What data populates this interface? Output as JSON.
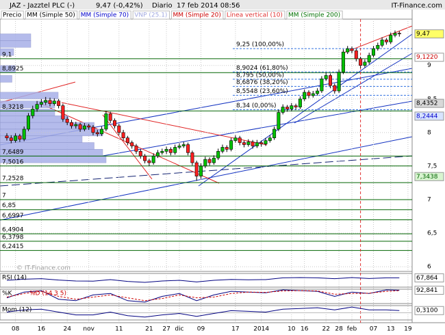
{
  "header": {
    "title": "JAZ - Jazztel PLC (-)",
    "quote": "9,47 (-0,42%)",
    "period": "Diario",
    "date": "17 feb 2014 08:56",
    "brand": "IT-Finance.com",
    "watermark": "© IT-Finance.com"
  },
  "chart_data": [
    {
      "type": "candlestick",
      "legend": [
        {
          "name": "Precio",
          "color": "#000000"
        },
        {
          "name": "MM (Simple 50)",
          "color": "#000000"
        },
        {
          "name": "MM (Simple 70)",
          "color": "#0000cc"
        },
        {
          "name": "VNP (25.1)",
          "color": "#a0a8e0"
        },
        {
          "name": "MM (Simple 20)",
          "color": "#cc0000"
        },
        {
          "name": "Línea vertical (10)",
          "color": "#e03030"
        },
        {
          "name": "MM (Simple 200)",
          "color": "#007000"
        }
      ],
      "categories": [
        null,
        null,
        "08",
        null,
        null,
        null,
        null,
        null,
        "16",
        null,
        null,
        null,
        null,
        null,
        "24",
        null,
        null,
        null,
        null,
        "nov",
        null,
        null,
        null,
        null,
        null,
        null,
        "11",
        null,
        null,
        null,
        null,
        null,
        null,
        "21",
        null,
        null,
        null,
        "27",
        null,
        null,
        "dic",
        null,
        null,
        null,
        null,
        "09",
        null,
        null,
        null,
        null,
        null,
        null,
        null,
        "17",
        null,
        null,
        null,
        null,
        null,
        "2014",
        null,
        null,
        null,
        null,
        null,
        null,
        "10",
        null,
        null,
        "16",
        null,
        null,
        null,
        null,
        "22",
        null,
        null,
        "28",
        null,
        null,
        "feb",
        null,
        null,
        null,
        null,
        "07",
        null,
        null,
        null,
        "13",
        null,
        null,
        null,
        "19"
      ],
      "ohlc": [
        [
          7.95,
          7.99,
          7.88,
          7.92
        ],
        [
          7.92,
          7.96,
          7.84,
          7.88
        ],
        [
          7.88,
          7.99,
          7.85,
          7.95
        ],
        [
          7.95,
          7.98,
          7.86,
          7.9
        ],
        [
          7.9,
          8.09,
          7.87,
          8.05
        ],
        [
          8.05,
          8.29,
          8.02,
          8.25
        ],
        [
          8.25,
          8.4,
          8.21,
          8.35
        ],
        [
          8.35,
          8.47,
          8.31,
          8.42
        ],
        [
          8.42,
          8.5,
          8.38,
          8.45
        ],
        [
          8.45,
          8.53,
          8.41,
          8.48
        ],
        [
          8.48,
          8.52,
          8.39,
          8.43
        ],
        [
          8.43,
          8.51,
          8.4,
          8.47
        ],
        [
          8.47,
          8.5,
          8.36,
          8.4
        ],
        [
          8.4,
          8.43,
          8.16,
          8.2
        ],
        [
          8.2,
          8.24,
          8.11,
          8.15
        ],
        [
          8.15,
          8.19,
          8.06,
          8.1
        ],
        [
          8.1,
          8.16,
          8.06,
          8.12
        ],
        [
          8.12,
          8.15,
          8.01,
          8.05
        ],
        [
          8.05,
          8.14,
          8.02,
          8.1
        ],
        [
          8.1,
          8.13,
          8.04,
          8.08
        ],
        [
          8.08,
          8.11,
          7.96,
          8.0
        ],
        [
          8.0,
          8.04,
          7.94,
          7.98
        ],
        [
          7.98,
          8.09,
          7.95,
          8.05
        ],
        [
          8.05,
          8.32,
          8.02,
          8.28
        ],
        [
          8.28,
          8.31,
          8.14,
          8.18
        ],
        [
          8.18,
          8.21,
          8.06,
          8.1
        ],
        [
          8.1,
          8.13,
          7.96,
          8.0
        ],
        [
          8.0,
          8.04,
          7.88,
          7.92
        ],
        [
          7.92,
          7.95,
          7.81,
          7.85
        ],
        [
          7.85,
          7.88,
          7.76,
          7.8
        ],
        [
          7.8,
          7.83,
          7.68,
          7.72
        ],
        [
          7.72,
          7.75,
          7.61,
          7.65
        ],
        [
          7.65,
          7.68,
          7.54,
          7.58
        ],
        [
          7.58,
          7.61,
          7.5,
          7.55
        ],
        [
          7.55,
          7.69,
          7.52,
          7.65
        ],
        [
          7.65,
          7.74,
          7.62,
          7.7
        ],
        [
          7.7,
          7.76,
          7.67,
          7.72
        ],
        [
          7.72,
          7.79,
          7.68,
          7.75
        ],
        [
          7.75,
          7.78,
          7.66,
          7.7
        ],
        [
          7.7,
          7.82,
          7.67,
          7.78
        ],
        [
          7.78,
          7.84,
          7.75,
          7.8
        ],
        [
          7.8,
          7.86,
          7.77,
          7.82
        ],
        [
          7.82,
          7.85,
          7.66,
          7.7
        ],
        [
          7.7,
          7.73,
          7.51,
          7.55
        ],
        [
          7.55,
          7.58,
          7.28,
          7.35
        ],
        [
          7.35,
          7.54,
          7.31,
          7.5
        ],
        [
          7.5,
          7.64,
          7.47,
          7.6
        ],
        [
          7.6,
          7.63,
          7.51,
          7.55
        ],
        [
          7.55,
          7.66,
          7.52,
          7.62
        ],
        [
          7.62,
          7.76,
          7.59,
          7.72
        ],
        [
          7.72,
          7.82,
          7.69,
          7.78
        ],
        [
          7.78,
          7.81,
          7.71,
          7.75
        ],
        [
          7.75,
          7.92,
          7.72,
          7.88
        ],
        [
          7.88,
          7.96,
          7.85,
          7.92
        ],
        [
          7.92,
          7.95,
          7.81,
          7.85
        ],
        [
          7.85,
          7.88,
          7.78,
          7.82
        ],
        [
          7.82,
          7.9,
          7.79,
          7.86
        ],
        [
          7.86,
          7.89,
          7.76,
          7.8
        ],
        [
          7.8,
          7.89,
          7.77,
          7.85
        ],
        [
          7.85,
          7.88,
          7.79,
          7.83
        ],
        [
          7.83,
          7.92,
          7.8,
          7.88
        ],
        [
          7.88,
          7.96,
          7.85,
          7.92
        ],
        [
          7.92,
          8.09,
          7.89,
          8.05
        ],
        [
          8.05,
          8.34,
          8.02,
          8.3
        ],
        [
          8.3,
          8.42,
          8.27,
          8.38
        ],
        [
          8.38,
          8.41,
          8.31,
          8.35
        ],
        [
          8.35,
          8.44,
          8.32,
          8.4
        ],
        [
          8.4,
          8.43,
          8.34,
          8.38
        ],
        [
          8.38,
          8.54,
          8.35,
          8.5
        ],
        [
          8.5,
          8.64,
          8.47,
          8.6
        ],
        [
          8.6,
          8.63,
          8.51,
          8.55
        ],
        [
          8.55,
          8.62,
          8.52,
          8.58
        ],
        [
          8.58,
          8.66,
          8.55,
          8.62
        ],
        [
          8.62,
          8.84,
          8.59,
          8.8
        ],
        [
          8.8,
          8.89,
          8.77,
          8.85
        ],
        [
          8.85,
          8.88,
          8.66,
          8.7
        ],
        [
          8.7,
          8.73,
          8.58,
          8.62
        ],
        [
          8.62,
          8.94,
          8.59,
          8.9
        ],
        [
          8.9,
          9.24,
          8.87,
          9.2
        ],
        [
          9.2,
          9.29,
          9.17,
          9.25
        ],
        [
          9.25,
          9.28,
          9.18,
          9.22
        ],
        [
          9.22,
          9.25,
          9.06,
          9.1
        ],
        [
          9.1,
          9.13,
          8.96,
          9.0
        ],
        [
          9.0,
          9.09,
          8.97,
          9.05
        ],
        [
          9.05,
          9.19,
          9.02,
          9.15
        ],
        [
          9.15,
          9.29,
          9.12,
          9.25
        ],
        [
          9.25,
          9.34,
          9.22,
          9.3
        ],
        [
          9.3,
          9.42,
          9.27,
          9.38
        ],
        [
          9.38,
          9.41,
          9.31,
          9.35
        ],
        [
          9.35,
          9.49,
          9.32,
          9.45
        ],
        [
          9.45,
          9.52,
          9.42,
          9.48
        ],
        [
          9.48,
          9.51,
          9.43,
          9.47
        ],
        null,
        null
      ],
      "up_color": "#00c000",
      "down_color": "#ff2020",
      "ylim": [
        5.93,
        9.69
      ],
      "yticks": [
        9,
        {
          "value": 8.5,
          "label": "8,5"
        },
        8,
        {
          "value": 7.5,
          "label": "7,5"
        },
        7,
        {
          "value": 6.5,
          "label": "6,5"
        },
        6
      ],
      "grid": true,
      "levels": [
        {
          "value": 9.1,
          "label": "9,1"
        },
        {
          "value": 8.8925,
          "label": "8,8925"
        },
        {
          "value": 8.3218,
          "label": "8,3218"
        },
        {
          "value": 7.6489,
          "label": "7,6489"
        },
        {
          "value": 7.5016,
          "label": "7,5016"
        },
        {
          "value": 7.2528,
          "label": "7,2528"
        },
        7,
        {
          "value": 6.85,
          "label": "6,85"
        },
        {
          "value": 6.6997,
          "label": "6,6997"
        },
        {
          "value": 6.4904,
          "label": "6,4904"
        },
        {
          "value": 6.3798,
          "label": "6,3798"
        },
        {
          "value": 6.2415,
          "label": "6,2415"
        }
      ],
      "level_color": "#006400",
      "fib_levels": [
        {
          "value": 9.25,
          "label": "9,25 (100,00%)"
        },
        {
          "value": 8.9024,
          "label": "8,9024 (61,80%)"
        },
        {
          "value": 8.795,
          "label": "8,795 (50,00%)"
        },
        {
          "value": 8.6876,
          "label": "8,6876 (38,20%)"
        },
        {
          "value": 8.5548,
          "label": "8,5548 (23,60%)"
        },
        {
          "value": 8.34,
          "label": "8,34 (0,00%)"
        }
      ],
      "fib_color": "#3070e0",
      "price_labels": [
        {
          "value": 9.47,
          "label": "9,47",
          "color": "#000000",
          "background": "#ffff66"
        },
        {
          "value": 9.122,
          "label": "9,1220",
          "color": "#cc0000",
          "background": "#ffffff"
        },
        {
          "value": 8.4352,
          "label": "8,4352",
          "color": "#000000",
          "background": "#d8d8d8"
        },
        {
          "value": 8.2444,
          "label": "8,2444",
          "color": "#0000cc",
          "background": "#d8e4ff"
        },
        {
          "value": 7.3438,
          "label": "7,3438",
          "color": "#006400",
          "background": "#d8f4d0"
        }
      ],
      "volume_profile": {
        "prices": [
          9.42,
          9.32,
          9.2,
          8.95,
          8.8,
          8.55,
          8.42,
          8.3,
          8.2,
          8.1,
          8.0,
          7.9,
          7.8,
          7.7,
          7.6
        ],
        "values": [
          18,
          18,
          8,
          9,
          7,
          34,
          32,
          32,
          40,
          55,
          60,
          48,
          55,
          60,
          62
        ],
        "xlim": [
          0,
          100
        ],
        "color": "#a8b0e8"
      },
      "vertical_line": 82
    },
    {
      "type": "line",
      "title": "RSI (14)",
      "x": [
        0,
        4,
        8,
        12,
        16,
        20,
        24,
        28,
        32,
        36,
        40,
        44,
        48,
        52,
        56,
        60,
        64,
        68,
        72,
        76,
        80,
        84,
        88,
        91
      ],
      "ylim": [
        0,
        100
      ],
      "series": [
        {
          "color": "#000080",
          "values": [
            50,
            58,
            62,
            52,
            45,
            44,
            55,
            42,
            35,
            45,
            50,
            38,
            50,
            56,
            54,
            55,
            68,
            70,
            68,
            62,
            70,
            63,
            68,
            67.864
          ]
        }
      ],
      "current": {
        "value": 67.864,
        "label": "67,864"
      }
    },
    {
      "type": "line",
      "x": [
        0,
        4,
        8,
        12,
        16,
        20,
        24,
        28,
        32,
        36,
        40,
        44,
        48,
        52,
        56,
        60,
        64,
        68,
        72,
        76,
        80,
        84,
        88,
        91
      ],
      "ylim": [
        0,
        100
      ],
      "series": [
        {
          "name": "%K",
          "color": "#000080",
          "values": [
            40,
            80,
            90,
            30,
            20,
            60,
            70,
            20,
            10,
            50,
            70,
            20,
            60,
            85,
            80,
            75,
            95,
            90,
            85,
            50,
            80,
            70,
            95,
            92.841
          ]
        },
        {
          "name": "%D (14 3 5)",
          "color": "#cc0000",
          "values": [
            45,
            70,
            85,
            50,
            30,
            45,
            60,
            40,
            20,
            35,
            60,
            40,
            45,
            70,
            80,
            78,
            88,
            90,
            88,
            65,
            70,
            72,
            85,
            90
          ]
        }
      ],
      "current": {
        "value": 92.841,
        "label": "92,841"
      }
    },
    {
      "type": "line",
      "title": "Mom (12)",
      "x": [
        0,
        4,
        8,
        12,
        16,
        20,
        24,
        28,
        32,
        36,
        40,
        44,
        48,
        52,
        56,
        60,
        64,
        68,
        72,
        76,
        80,
        84,
        88,
        91
      ],
      "ylim": [
        -1,
        1
      ],
      "series": [
        {
          "color": "#000080",
          "values": [
            0.1,
            0.4,
            0.5,
            0.1,
            -0.3,
            -0.3,
            0.1,
            -0.4,
            -0.6,
            -0.3,
            -0.1,
            -0.5,
            -0.1,
            0.3,
            0.2,
            0.1,
            0.5,
            0.6,
            0.7,
            0.4,
            0.8,
            0.4,
            0.4,
            0.31
          ]
        }
      ],
      "current": {
        "value": 0.31,
        "label": "0,3100"
      },
      "fill": "#e0a0a0"
    }
  ]
}
